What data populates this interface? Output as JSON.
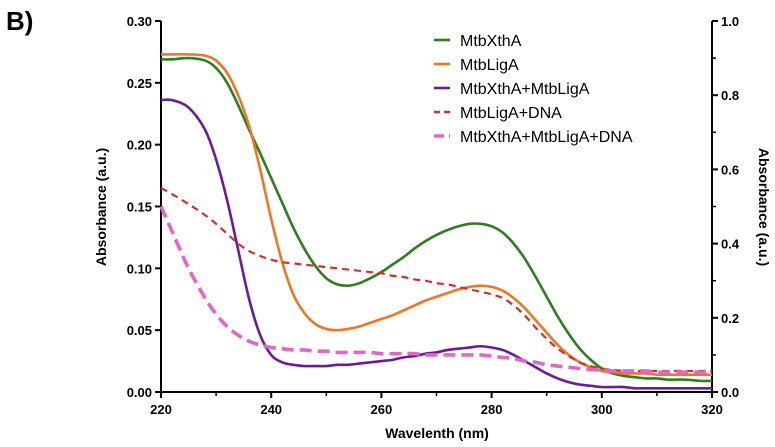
{
  "panel_label": "B)",
  "chart_data": {
    "type": "line",
    "title": "",
    "xlabel": "Wavelenth (nm)",
    "ylabel": "Absorbance (a.u.)",
    "y2label": "Absorbance (a.u.)",
    "xlim": [
      220,
      320
    ],
    "ylim": [
      0,
      0.3
    ],
    "y2lim": [
      0,
      1.0
    ],
    "xticks": [
      "220",
      "240",
      "260",
      "280",
      "300",
      "320"
    ],
    "yticks": [
      "0.00",
      "0.05",
      "0.10",
      "0.15",
      "0.20",
      "0.25",
      "0.30"
    ],
    "y2ticks": [
      "0.0",
      "0.2",
      "0.4",
      "0.6",
      "0.8",
      "1.0"
    ],
    "grid": false,
    "legend_position": "top-right",
    "series": [
      {
        "name": "MtbXthA",
        "color": "#2e7d1e",
        "dash": "solid",
        "axis": "left",
        "x": [
          220,
          222,
          225,
          228,
          230,
          232,
          234,
          236,
          238,
          240,
          242,
          244,
          246,
          248,
          250,
          252,
          254,
          256,
          258,
          260,
          262,
          264,
          266,
          268,
          270,
          272,
          274,
          276,
          278,
          280,
          282,
          284,
          286,
          288,
          290,
          292,
          294,
          296,
          298,
          300,
          302,
          304,
          306,
          308,
          310,
          312,
          315,
          318,
          320
        ],
        "y": [
          0.269,
          0.269,
          0.27,
          0.268,
          0.262,
          0.25,
          0.232,
          0.212,
          0.193,
          0.173,
          0.153,
          0.133,
          0.116,
          0.102,
          0.092,
          0.087,
          0.086,
          0.088,
          0.092,
          0.097,
          0.103,
          0.109,
          0.116,
          0.122,
          0.127,
          0.131,
          0.134,
          0.136,
          0.136,
          0.134,
          0.129,
          0.12,
          0.108,
          0.093,
          0.077,
          0.061,
          0.047,
          0.035,
          0.026,
          0.019,
          0.015,
          0.013,
          0.012,
          0.011,
          0.011,
          0.01,
          0.01,
          0.009,
          0.009
        ]
      },
      {
        "name": "MtbLigA",
        "color": "#ee7624",
        "dash": "solid",
        "axis": "left",
        "x": [
          220,
          222,
          225,
          228,
          230,
          232,
          234,
          236,
          238,
          240,
          242,
          244,
          246,
          248,
          250,
          252,
          254,
          256,
          258,
          260,
          262,
          264,
          266,
          268,
          270,
          272,
          274,
          276,
          278,
          280,
          282,
          284,
          286,
          288,
          290,
          292,
          294,
          296,
          298,
          300,
          302,
          304,
          306,
          308,
          310,
          312,
          315,
          318,
          320
        ],
        "y": [
          0.273,
          0.273,
          0.273,
          0.272,
          0.268,
          0.258,
          0.24,
          0.215,
          0.18,
          0.14,
          0.105,
          0.079,
          0.064,
          0.055,
          0.051,
          0.05,
          0.051,
          0.053,
          0.056,
          0.059,
          0.062,
          0.066,
          0.07,
          0.074,
          0.077,
          0.08,
          0.083,
          0.085,
          0.086,
          0.085,
          0.082,
          0.076,
          0.068,
          0.058,
          0.048,
          0.038,
          0.03,
          0.024,
          0.02,
          0.017,
          0.016,
          0.015,
          0.015,
          0.015,
          0.014,
          0.014,
          0.014,
          0.014,
          0.014
        ]
      },
      {
        "name": "MtbXthA+MtbLigA",
        "color": "#6a1b9a",
        "dash": "solid",
        "axis": "left",
        "x": [
          220,
          222,
          225,
          228,
          230,
          232,
          234,
          236,
          238,
          240,
          242,
          244,
          246,
          248,
          250,
          252,
          254,
          256,
          258,
          260,
          262,
          264,
          266,
          268,
          270,
          272,
          274,
          276,
          278,
          280,
          282,
          284,
          286,
          288,
          290,
          292,
          294,
          296,
          298,
          300,
          302,
          304,
          306,
          308,
          310,
          312,
          315,
          318,
          320
        ],
        "y": [
          0.236,
          0.236,
          0.23,
          0.212,
          0.188,
          0.155,
          0.115,
          0.075,
          0.046,
          0.03,
          0.024,
          0.022,
          0.021,
          0.021,
          0.021,
          0.022,
          0.022,
          0.023,
          0.024,
          0.025,
          0.026,
          0.028,
          0.029,
          0.031,
          0.032,
          0.034,
          0.035,
          0.036,
          0.037,
          0.036,
          0.034,
          0.03,
          0.025,
          0.02,
          0.015,
          0.011,
          0.008,
          0.006,
          0.005,
          0.004,
          0.004,
          0.004,
          0.003,
          0.003,
          0.003,
          0.003,
          0.003,
          0.003,
          0.003
        ]
      },
      {
        "name": "MtbLigA+DNA",
        "color": "#d32f2f",
        "dash": "short",
        "axis": "left",
        "x": [
          220,
          222,
          225,
          228,
          230,
          232,
          234,
          236,
          238,
          240,
          242,
          244,
          246,
          248,
          250,
          252,
          254,
          256,
          258,
          260,
          262,
          264,
          266,
          268,
          270,
          272,
          274,
          276,
          278,
          280,
          282,
          284,
          286,
          288,
          290,
          292,
          294,
          296,
          298,
          300,
          302,
          304,
          306,
          308,
          310,
          312,
          315,
          318,
          320
        ],
        "y": [
          0.165,
          0.16,
          0.152,
          0.143,
          0.136,
          0.128,
          0.12,
          0.114,
          0.11,
          0.107,
          0.105,
          0.104,
          0.103,
          0.102,
          0.101,
          0.1,
          0.099,
          0.098,
          0.097,
          0.096,
          0.094,
          0.093,
          0.091,
          0.09,
          0.088,
          0.087,
          0.085,
          0.083,
          0.081,
          0.079,
          0.076,
          0.07,
          0.062,
          0.052,
          0.043,
          0.035,
          0.029,
          0.024,
          0.021,
          0.019,
          0.018,
          0.017,
          0.017,
          0.017,
          0.017,
          0.017,
          0.017,
          0.017,
          0.017
        ]
      },
      {
        "name": "MtbXthA+MtbLigA+DNA",
        "color": "#e066c8",
        "dash": "long",
        "axis": "left",
        "x": [
          220,
          222,
          225,
          228,
          230,
          232,
          234,
          236,
          238,
          240,
          242,
          244,
          246,
          248,
          250,
          252,
          254,
          256,
          258,
          260,
          262,
          264,
          266,
          268,
          270,
          272,
          274,
          276,
          278,
          280,
          282,
          284,
          286,
          288,
          290,
          292,
          294,
          296,
          298,
          300,
          302,
          304,
          306,
          308,
          310,
          312,
          315,
          318,
          320
        ],
        "y": [
          0.15,
          0.13,
          0.1,
          0.076,
          0.063,
          0.053,
          0.046,
          0.041,
          0.038,
          0.036,
          0.035,
          0.034,
          0.034,
          0.033,
          0.033,
          0.032,
          0.032,
          0.032,
          0.032,
          0.031,
          0.031,
          0.031,
          0.031,
          0.03,
          0.03,
          0.03,
          0.03,
          0.03,
          0.03,
          0.029,
          0.028,
          0.027,
          0.025,
          0.024,
          0.022,
          0.021,
          0.02,
          0.019,
          0.018,
          0.018,
          0.017,
          0.017,
          0.017,
          0.017,
          0.016,
          0.016,
          0.016,
          0.016,
          0.016
        ]
      }
    ]
  }
}
